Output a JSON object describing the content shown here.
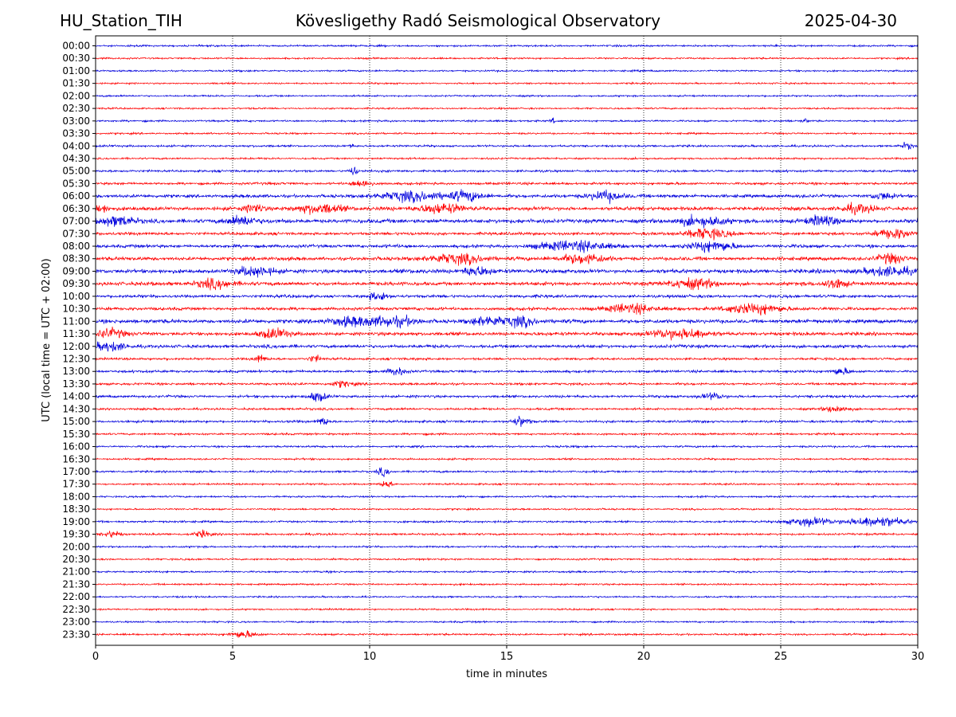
{
  "header": {
    "station": "HU_Station_TIH",
    "observatory": "Kövesligethy Radó Seismological Observatory",
    "date": "2025-04-30"
  },
  "chart_data": {
    "type": "line",
    "title": "Kövesligethy Radó Seismological Observatory",
    "xlabel": "time in minutes",
    "ylabel": "UTC (local time = UTC + 02:00)",
    "xlim": [
      0,
      30
    ],
    "x_ticks": [
      0,
      5,
      10,
      15,
      20,
      25,
      30
    ],
    "grid": "vertical dotted lines at x ticks",
    "trace_colors": [
      "#0000dd",
      "#ff0000"
    ],
    "row_labels": [
      "00:00",
      "00:30",
      "01:00",
      "01:30",
      "02:00",
      "02:30",
      "03:00",
      "03:30",
      "04:00",
      "04:30",
      "05:00",
      "05:30",
      "06:00",
      "06:30",
      "07:00",
      "07:30",
      "08:00",
      "08:30",
      "09:00",
      "09:30",
      "10:00",
      "10:30",
      "11:00",
      "11:30",
      "12:00",
      "12:30",
      "13:00",
      "13:30",
      "14:00",
      "14:30",
      "15:00",
      "15:30",
      "16:00",
      "16:30",
      "17:00",
      "17:30",
      "18:00",
      "18:30",
      "19:00",
      "19:30",
      "20:00",
      "20:30",
      "21:00",
      "21:30",
      "22:00",
      "22:30",
      "23:00",
      "23:30"
    ],
    "row_activity": [
      0.22,
      0.18,
      0.18,
      0.16,
      0.18,
      0.18,
      0.24,
      0.2,
      0.3,
      0.22,
      0.35,
      0.45,
      0.7,
      0.85,
      1.0,
      0.6,
      0.7,
      0.8,
      0.95,
      0.85,
      0.6,
      0.65,
      0.9,
      0.8,
      0.7,
      0.4,
      0.45,
      0.4,
      0.45,
      0.35,
      0.4,
      0.28,
      0.28,
      0.22,
      0.28,
      0.22,
      0.22,
      0.18,
      0.28,
      0.3,
      0.22,
      0.2,
      0.22,
      0.2,
      0.16,
      0.16,
      0.18,
      0.24
    ],
    "events": [
      {
        "row": "03:00",
        "minute": 16.7,
        "amplitude": 0.5,
        "width": 0.1
      },
      {
        "row": "03:00",
        "minute": 25.9,
        "amplitude": 0.4,
        "width": 0.1
      },
      {
        "row": "04:00",
        "minute": 9.3,
        "amplitude": 0.4,
        "width": 0.1
      },
      {
        "row": "04:00",
        "minute": 29.6,
        "amplitude": 0.6,
        "width": 0.2
      },
      {
        "row": "05:00",
        "minute": 9.4,
        "amplitude": 0.9,
        "width": 0.15
      },
      {
        "row": "05:30",
        "minute": 9.7,
        "amplitude": 0.8,
        "width": 0.3
      },
      {
        "row": "06:00",
        "minute": 11.5,
        "amplitude": 0.9,
        "width": 1.2
      },
      {
        "row": "06:00",
        "minute": 13.5,
        "amplitude": 1.0,
        "width": 0.6
      },
      {
        "row": "06:00",
        "minute": 18.6,
        "amplitude": 1.0,
        "width": 0.6
      },
      {
        "row": "06:00",
        "minute": 28.7,
        "amplitude": 0.7,
        "width": 0.4
      },
      {
        "row": "06:30",
        "minute": 0.1,
        "amplitude": 1.0,
        "width": 0.3
      },
      {
        "row": "06:30",
        "minute": 5.8,
        "amplitude": 1.0,
        "width": 0.3
      },
      {
        "row": "06:30",
        "minute": 8.2,
        "amplitude": 1.0,
        "width": 0.8
      },
      {
        "row": "06:30",
        "minute": 12.6,
        "amplitude": 1.0,
        "width": 0.8
      },
      {
        "row": "06:30",
        "minute": 27.8,
        "amplitude": 0.8,
        "width": 0.6
      },
      {
        "row": "07:00",
        "minute": 0.8,
        "amplitude": 1.0,
        "width": 0.6
      },
      {
        "row": "07:00",
        "minute": 5.3,
        "amplitude": 1.0,
        "width": 0.5
      },
      {
        "row": "07:00",
        "minute": 22.2,
        "amplitude": 1.0,
        "width": 0.8
      },
      {
        "row": "07:00",
        "minute": 26.5,
        "amplitude": 1.0,
        "width": 0.5
      },
      {
        "row": "07:30",
        "minute": 22.3,
        "amplitude": 1.0,
        "width": 0.8
      },
      {
        "row": "07:30",
        "minute": 29.1,
        "amplitude": 1.0,
        "width": 0.6
      },
      {
        "row": "08:00",
        "minute": 17.5,
        "amplitude": 1.0,
        "width": 1.2
      },
      {
        "row": "08:00",
        "minute": 22.5,
        "amplitude": 1.0,
        "width": 0.8
      },
      {
        "row": "08:30",
        "minute": 13.2,
        "amplitude": 1.0,
        "width": 1.0
      },
      {
        "row": "08:30",
        "minute": 17.8,
        "amplitude": 1.0,
        "width": 0.8
      },
      {
        "row": "08:30",
        "minute": 29.0,
        "amplitude": 1.0,
        "width": 0.5
      },
      {
        "row": "09:00",
        "minute": 5.8,
        "amplitude": 1.0,
        "width": 0.6
      },
      {
        "row": "09:00",
        "minute": 13.9,
        "amplitude": 1.0,
        "width": 0.5
      },
      {
        "row": "09:00",
        "minute": 28.9,
        "amplitude": 1.0,
        "width": 0.8
      },
      {
        "row": "09:30",
        "minute": 4.3,
        "amplitude": 1.0,
        "width": 0.6
      },
      {
        "row": "09:30",
        "minute": 21.8,
        "amplitude": 1.0,
        "width": 0.8
      },
      {
        "row": "09:30",
        "minute": 27.0,
        "amplitude": 1.0,
        "width": 0.4
      },
      {
        "row": "10:00",
        "minute": 10.3,
        "amplitude": 0.9,
        "width": 0.3
      },
      {
        "row": "10:30",
        "minute": 19.5,
        "amplitude": 1.0,
        "width": 0.8
      },
      {
        "row": "10:30",
        "minute": 24.0,
        "amplitude": 1.0,
        "width": 1.0
      },
      {
        "row": "11:00",
        "minute": 9.4,
        "amplitude": 1.0,
        "width": 0.8
      },
      {
        "row": "11:00",
        "minute": 10.8,
        "amplitude": 1.0,
        "width": 0.8
      },
      {
        "row": "11:00",
        "minute": 14.3,
        "amplitude": 1.0,
        "width": 0.6
      },
      {
        "row": "11:00",
        "minute": 15.5,
        "amplitude": 1.0,
        "width": 0.5
      },
      {
        "row": "11:30",
        "minute": 0.5,
        "amplitude": 1.0,
        "width": 0.5
      },
      {
        "row": "11:30",
        "minute": 6.5,
        "amplitude": 1.0,
        "width": 0.5
      },
      {
        "row": "11:30",
        "minute": 21.3,
        "amplitude": 1.0,
        "width": 1.0
      },
      {
        "row": "12:00",
        "minute": 0.5,
        "amplitude": 1.0,
        "width": 0.5
      },
      {
        "row": "12:30",
        "minute": 6.0,
        "amplitude": 0.7,
        "width": 0.2
      },
      {
        "row": "12:30",
        "minute": 8.0,
        "amplitude": 0.7,
        "width": 0.2
      },
      {
        "row": "13:00",
        "minute": 11.0,
        "amplitude": 0.8,
        "width": 0.3
      },
      {
        "row": "13:00",
        "minute": 27.2,
        "amplitude": 0.7,
        "width": 0.3
      },
      {
        "row": "13:30",
        "minute": 9.0,
        "amplitude": 0.6,
        "width": 0.4
      },
      {
        "row": "14:00",
        "minute": 8.1,
        "amplitude": 1.0,
        "width": 0.3
      },
      {
        "row": "14:00",
        "minute": 22.5,
        "amplitude": 0.6,
        "width": 0.4
      },
      {
        "row": "14:30",
        "minute": 27.0,
        "amplitude": 0.7,
        "width": 0.4
      },
      {
        "row": "15:00",
        "minute": 8.3,
        "amplitude": 0.8,
        "width": 0.2
      },
      {
        "row": "15:00",
        "minute": 15.5,
        "amplitude": 1.0,
        "width": 0.3
      },
      {
        "row": "17:00",
        "minute": 10.5,
        "amplitude": 0.9,
        "width": 0.2
      },
      {
        "row": "17:30",
        "minute": 10.6,
        "amplitude": 0.8,
        "width": 0.2
      },
      {
        "row": "19:00",
        "minute": 26.0,
        "amplitude": 0.8,
        "width": 0.8
      },
      {
        "row": "19:00",
        "minute": 28.5,
        "amplitude": 1.0,
        "width": 1.0
      },
      {
        "row": "19:30",
        "minute": 0.6,
        "amplitude": 0.7,
        "width": 0.3
      },
      {
        "row": "19:30",
        "minute": 3.9,
        "amplitude": 0.6,
        "width": 0.3
      },
      {
        "row": "23:30",
        "minute": 5.4,
        "amplitude": 0.7,
        "width": 0.5
      }
    ]
  }
}
